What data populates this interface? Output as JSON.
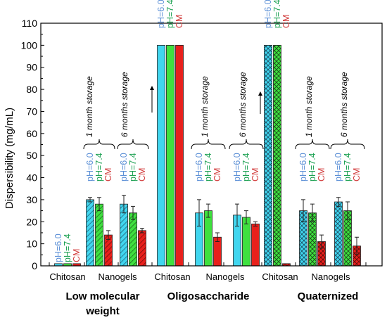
{
  "chart_data": {
    "type": "bar",
    "ylabel": "Dispersibility (mg/mL)",
    "ylim": [
      0,
      110
    ],
    "yticks": [
      0,
      10,
      20,
      30,
      40,
      50,
      60,
      70,
      80,
      90,
      100,
      110
    ],
    "grid": false,
    "series_labels": [
      "pH=6.0",
      "pH=7.4",
      "CM"
    ],
    "colors": {
      "ph60": "#41d6ef",
      "ph74": "#3fe03f",
      "cm": "#e8201c",
      "ph60_label": "#5b8fd6",
      "ph74_label": "#1aa050",
      "cm_label": "#d23c3c"
    },
    "groups": [
      {
        "name": "Low molecular weight",
        "name_lines": [
          "Low molecular",
          "weight"
        ],
        "subgroups": [
          {
            "name": "Chitosan",
            "pattern": "plain",
            "values": [
              1,
              1,
              1
            ],
            "errors": [
              0,
              0,
              0
            ]
          },
          {
            "name": "1 month storage",
            "pattern": "hatch",
            "values": [
              30,
              28,
              14
            ],
            "errors": [
              1,
              3,
              2
            ]
          },
          {
            "name": "Nanogels",
            "pattern": "hatch",
            "values": [
              28,
              24,
              16
            ],
            "errors": [
              4,
              3,
              1
            ]
          }
        ],
        "storage_labels": [
          "1 month storage",
          "6 months storage"
        ]
      },
      {
        "name": "Oligosaccharide",
        "subgroups": [
          {
            "name": "Chitosan",
            "pattern": "plain",
            "values": [
              100,
              100,
              100
            ],
            "errors": [
              0,
              0,
              0
            ]
          },
          {
            "name": "1 month storage",
            "pattern": "plain",
            "values": [
              24,
              25,
              13
            ],
            "errors": [
              6,
              3,
              2
            ]
          },
          {
            "name": "Nanogels",
            "pattern": "plain",
            "values": [
              23,
              22,
              19
            ],
            "errors": [
              5,
              3,
              1
            ]
          }
        ],
        "storage_labels": [
          "1 month storage",
          "6 months storage"
        ]
      },
      {
        "name": "Quaternized",
        "subgroups": [
          {
            "name": "Chitosan",
            "pattern": "cross",
            "values": [
              100,
              100,
              1
            ],
            "errors": [
              0,
              0,
              0
            ]
          },
          {
            "name": "1 month storage",
            "pattern": "cross",
            "values": [
              25,
              24,
              11
            ],
            "errors": [
              5,
              4,
              3
            ]
          },
          {
            "name": "Nanogels",
            "pattern": "cross",
            "values": [
              29,
              25,
              9
            ],
            "errors": [
              2,
              4,
              4
            ]
          }
        ],
        "storage_labels": [
          "1 month storage",
          "6 months storage"
        ]
      }
    ],
    "x_category_labels": [
      "Chitosan",
      "Nanogels",
      "Chitosan",
      "Nanogels",
      "Chitosan",
      "Nanogels"
    ]
  }
}
